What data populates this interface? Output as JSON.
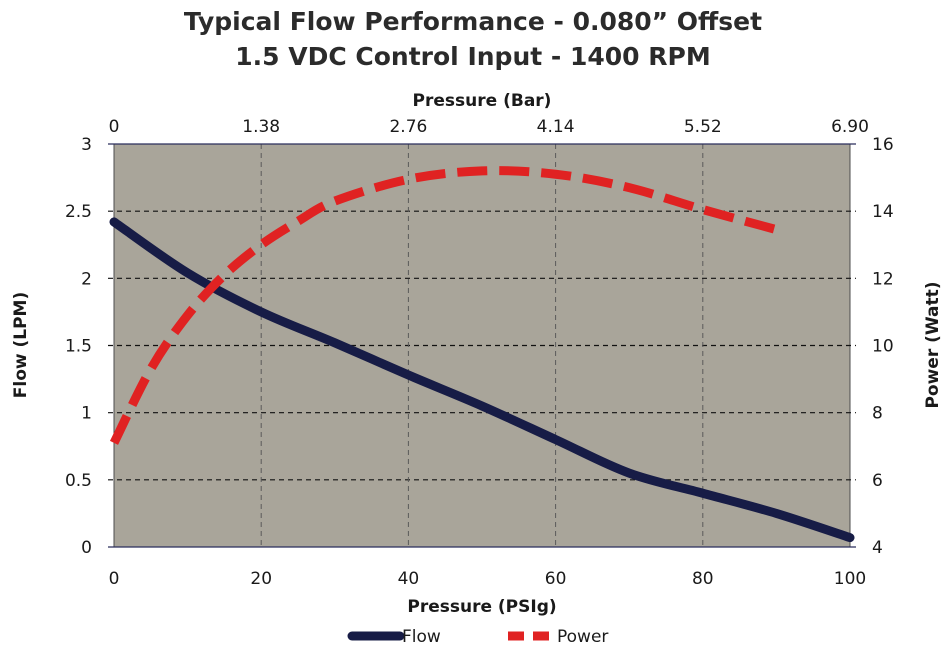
{
  "chart_data": {
    "type": "line",
    "title": "Typical Flow Performance - 0.080” Offset",
    "subtitle": "1.5 VDC Control Input - 1400 RPM",
    "xlabel": "Pressure (PSIg)",
    "x2label": "Pressure (Bar)",
    "ylabel": "Flow (LPM)",
    "y2label": "Power (Watt)",
    "xlim": [
      0,
      100
    ],
    "ylim": [
      0,
      3
    ],
    "y2lim": [
      4,
      16
    ],
    "x_ticks": [
      "0",
      "20",
      "40",
      "60",
      "80",
      "100"
    ],
    "x2_ticks": [
      "0",
      "1.38",
      "2.76",
      "4.14",
      "5.52",
      "6.90"
    ],
    "y_ticks": [
      "0",
      "0.5",
      "1",
      "1.5",
      "2",
      "2.5",
      "3"
    ],
    "y2_ticks": [
      "4",
      "6",
      "8",
      "10",
      "12",
      "14",
      "16"
    ],
    "grid": true,
    "plot_background": "#a9a59a",
    "legend_position": "bottom-center",
    "series": [
      {
        "name": "Flow",
        "axis": "left",
        "color": "#171c46",
        "style": "solid",
        "x": [
          0,
          10,
          20,
          30,
          40,
          50,
          60,
          70,
          80,
          90,
          100
        ],
        "values": [
          2.42,
          2.04,
          1.75,
          1.52,
          1.28,
          1.05,
          0.8,
          0.55,
          0.4,
          0.25,
          0.07
        ]
      },
      {
        "name": "Power",
        "axis": "right",
        "color": "#e02222",
        "style": "dashed",
        "x": [
          0,
          5,
          10,
          15,
          20,
          25,
          30,
          40,
          50,
          60,
          70,
          80,
          90
        ],
        "values": [
          7.1,
          9.3,
          10.9,
          12.1,
          13.0,
          13.7,
          14.3,
          14.95,
          15.2,
          15.1,
          14.7,
          14.05,
          13.45
        ]
      }
    ]
  }
}
